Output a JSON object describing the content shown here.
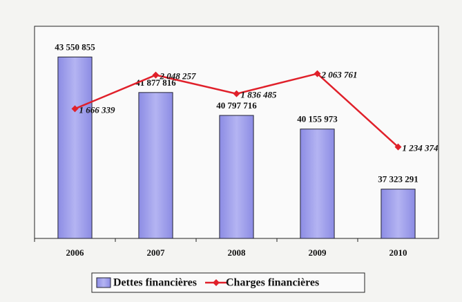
{
  "chart_data": {
    "type": "bar-line",
    "categories": [
      "2006",
      "2007",
      "2008",
      "2009",
      "2010"
    ],
    "series": [
      {
        "name": "Dettes financières",
        "type": "bar",
        "color": "#8c8ce4",
        "values": [
          43550855,
          41877816,
          40797716,
          40155973,
          37323291
        ],
        "value_labels": [
          "43 550 855",
          "41 877 816",
          "40 797 716",
          "40 155 973",
          "37 323 291"
        ]
      },
      {
        "name": "Charges financières",
        "type": "line",
        "axis": "y2",
        "color": "#e0202a",
        "values": [
          1666339,
          2048257,
          1836485,
          2063761,
          1234374
        ],
        "value_labels": [
          "1 666 339",
          "2 048 257",
          "1 836 485",
          "2 063 761",
          "1 234 374"
        ]
      }
    ],
    "ylim": [
      35000000,
      45000000
    ],
    "y2lim": [
      200000,
      2600000
    ],
    "legend": "bottom"
  }
}
